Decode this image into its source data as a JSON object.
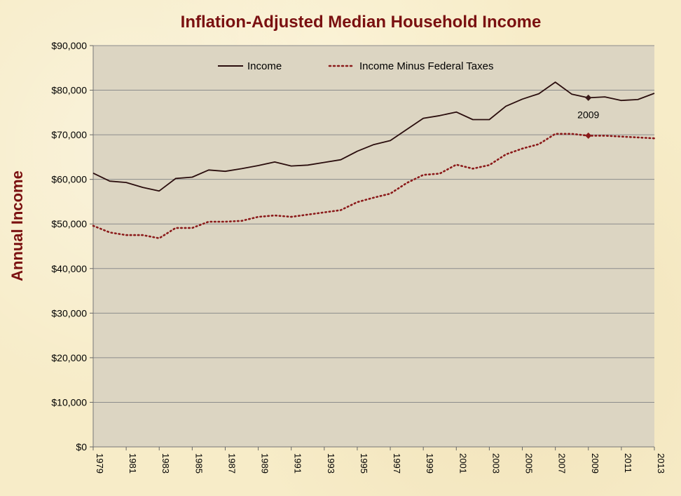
{
  "chart_data": {
    "type": "line",
    "title": "Inflation-Adjusted Median Household Income",
    "xlabel": "",
    "ylabel": "Annual  Income",
    "ylim": [
      0,
      90000
    ],
    "xlim": [
      1979,
      2013
    ],
    "y_ticks": [
      0,
      10000,
      20000,
      30000,
      40000,
      50000,
      60000,
      70000,
      80000,
      90000
    ],
    "y_tick_labels": [
      "$0",
      "$10,000",
      "$20,000",
      "$30,000",
      "$40,000",
      "$50,000",
      "$60,000",
      "$70,000",
      "$80,000",
      "$90,000"
    ],
    "x_tick_labels": [
      "1979",
      "1981",
      "1983",
      "1985",
      "1987",
      "1989",
      "1991",
      "1993",
      "1995",
      "1997",
      "1999",
      "2001",
      "2003",
      "2005",
      "2007",
      "2009",
      "2011",
      "2013"
    ],
    "grid": "horizontal",
    "legend_position": "top",
    "x": [
      1979,
      1980,
      1981,
      1982,
      1983,
      1984,
      1985,
      1986,
      1987,
      1988,
      1989,
      1990,
      1991,
      1992,
      1993,
      1994,
      1995,
      1996,
      1997,
      1998,
      1999,
      2000,
      2001,
      2002,
      2003,
      2004,
      2005,
      2006,
      2007,
      2008,
      2009,
      2010,
      2011,
      2012,
      2013
    ],
    "series": [
      {
        "name": "Income",
        "style": "solid",
        "color": "#2a0d0d",
        "values": [
          61400,
          59600,
          59300,
          58200,
          57400,
          60200,
          60500,
          62100,
          61800,
          62400,
          63100,
          63900,
          63000,
          63200,
          63800,
          64400,
          66300,
          67800,
          68700,
          71200,
          73700,
          74300,
          75100,
          73400,
          73400,
          76400,
          78000,
          79200,
          81800,
          79100,
          78300,
          78500,
          77700,
          77900,
          79300
        ]
      },
      {
        "name": "Income Minus Federal Taxes",
        "style": "dotted",
        "color": "#8b1a1a",
        "values": [
          49600,
          48100,
          47500,
          47500,
          46800,
          49100,
          49100,
          50500,
          50500,
          50700,
          51600,
          51900,
          51600,
          52100,
          52600,
          53100,
          54900,
          55900,
          56800,
          59200,
          61000,
          61300,
          63300,
          62400,
          63200,
          65600,
          66900,
          67900,
          70200,
          70200,
          69800,
          69800,
          69600,
          69400,
          69200
        ]
      }
    ],
    "annotations": [
      {
        "x": 2009,
        "label": "2009"
      }
    ]
  }
}
